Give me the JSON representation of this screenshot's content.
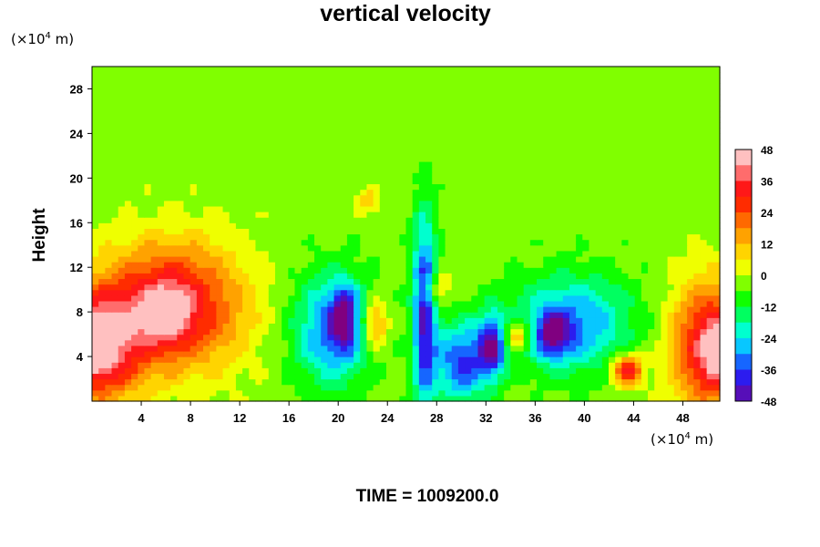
{
  "chart_data": {
    "type": "heatmap",
    "title": "vertical velocity",
    "ylabel": "Height",
    "xlabel": "",
    "y_unit_prefix": "(×10",
    "y_unit_exp": "4",
    "y_unit_suffix": " m)",
    "x_unit_prefix": "(×10",
    "x_unit_exp": "4",
    "x_unit_suffix": " m)",
    "xlim": [
      0,
      51
    ],
    "ylim": [
      0,
      30
    ],
    "x_ticks": [
      4,
      8,
      12,
      16,
      20,
      24,
      28,
      32,
      36,
      40,
      44,
      48
    ],
    "y_ticks": [
      4,
      8,
      12,
      16,
      20,
      24,
      28
    ],
    "colorbar": {
      "range": [
        -48,
        48
      ],
      "ticks": [
        48,
        36,
        24,
        12,
        0,
        -12,
        -24,
        -36,
        -48
      ],
      "colors": [
        "#800080",
        "#2020ff",
        "#00ffff",
        "#00ff00",
        "#ffff00",
        "#ff8c00",
        "#ff0000",
        "#ffc0c0"
      ]
    },
    "background_value": 0,
    "features": [
      {
        "kind": "updraft",
        "x": 6.5,
        "y": 8.5,
        "sx": 4.0,
        "sy": 4.0,
        "amp": 40
      },
      {
        "kind": "updraft",
        "x": 6.0,
        "y": 8.0,
        "sx": 1.3,
        "sy": 1.8,
        "amp": 20
      },
      {
        "kind": "updraft",
        "x": 0.8,
        "y": 5.0,
        "sx": 2.2,
        "sy": 3.5,
        "amp": 40
      },
      {
        "kind": "updraft",
        "x": 0.4,
        "y": 5.0,
        "sx": 0.8,
        "sy": 2.0,
        "amp": 20
      },
      {
        "kind": "updraft",
        "x": 50.3,
        "y": 5.0,
        "sx": 2.2,
        "sy": 4.0,
        "amp": 42
      },
      {
        "kind": "updraft",
        "x": 50.7,
        "y": 4.5,
        "sx": 0.8,
        "sy": 1.8,
        "amp": 16
      },
      {
        "kind": "downdraft",
        "x": 19.5,
        "y": 6.5,
        "sx": 2.2,
        "sy": 3.5,
        "amp": -30
      },
      {
        "kind": "downdraft",
        "x": 20.5,
        "y": 7.5,
        "sx": 0.8,
        "sy": 2.0,
        "amp": -28
      },
      {
        "kind": "updraft",
        "x": 23.0,
        "y": 7.0,
        "sx": 0.7,
        "sy": 1.5,
        "amp": 25
      },
      {
        "kind": "downdraft",
        "x": 27.0,
        "y": 8.0,
        "sx": 0.7,
        "sy": 6.0,
        "amp": -40
      },
      {
        "kind": "downdraft",
        "x": 30.0,
        "y": 3.5,
        "sx": 1.5,
        "sy": 2.5,
        "amp": -34
      },
      {
        "kind": "downdraft",
        "x": 32.5,
        "y": 5.0,
        "sx": 0.8,
        "sy": 2.0,
        "amp": -38
      },
      {
        "kind": "updraft",
        "x": 34.5,
        "y": 6.0,
        "sx": 0.8,
        "sy": 1.0,
        "amp": 25
      },
      {
        "kind": "downdraft",
        "x": 39.0,
        "y": 7.0,
        "sx": 3.5,
        "sy": 3.0,
        "amp": -28
      },
      {
        "kind": "downdraft",
        "x": 37.5,
        "y": 6.0,
        "sx": 1.0,
        "sy": 1.4,
        "amp": -30
      },
      {
        "kind": "updraft",
        "x": 43.5,
        "y": 2.8,
        "sx": 0.9,
        "sy": 1.0,
        "amp": 38
      },
      {
        "kind": "updraft",
        "x": 28.0,
        "y": 10.0,
        "sx": 0.7,
        "sy": 1.0,
        "amp": 18
      },
      {
        "kind": "updraft",
        "x": 22.5,
        "y": 18.0,
        "sx": 0.6,
        "sy": 0.8,
        "amp": 14
      }
    ],
    "time_label": "TIME = 1009200.0"
  }
}
